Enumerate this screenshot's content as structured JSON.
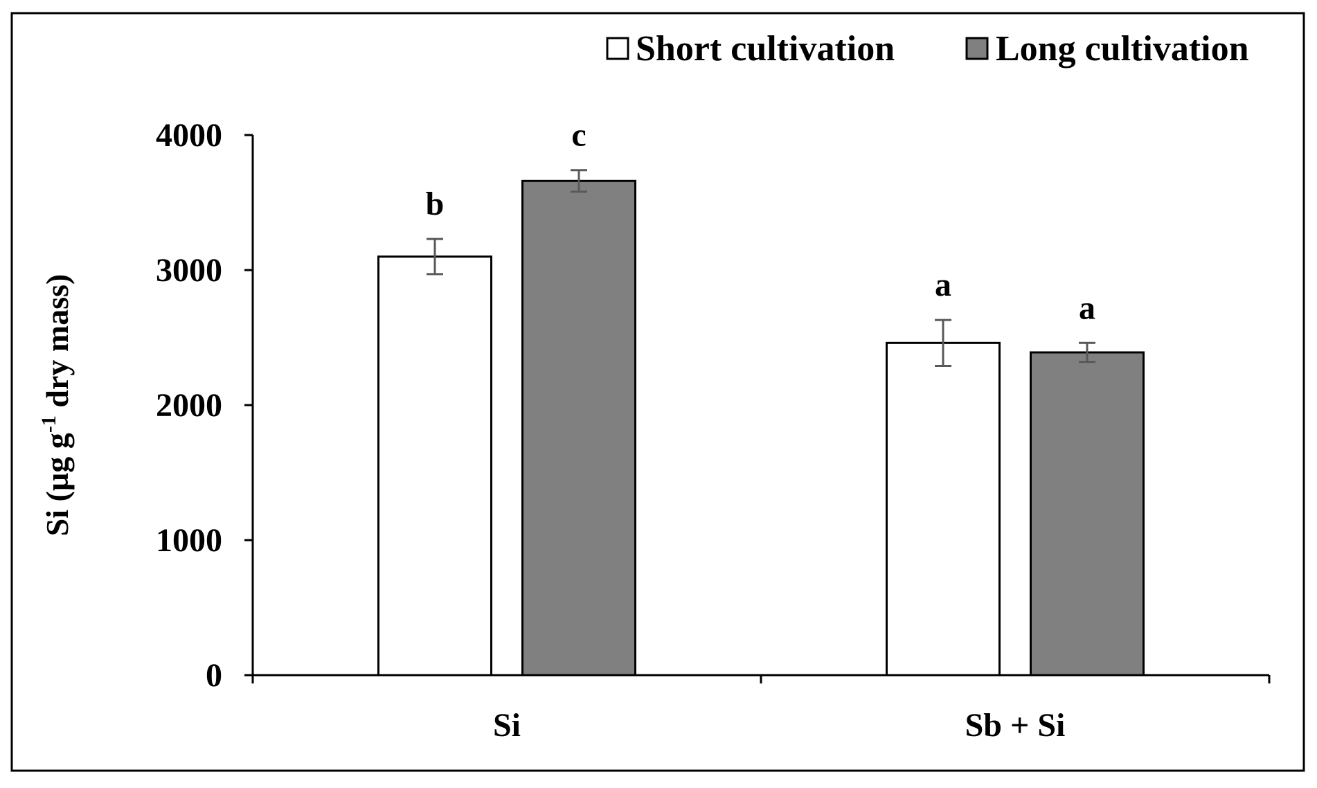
{
  "chart_data": {
    "type": "bar",
    "categories": [
      "Si",
      "Sb + Si"
    ],
    "series": [
      {
        "name": "Short cultivation",
        "color": "#ffffff",
        "values": [
          3100,
          2460
        ],
        "errors": [
          130,
          170
        ],
        "letters": [
          "b",
          "a"
        ]
      },
      {
        "name": "Long cultivation",
        "color": "#808080",
        "values": [
          3660,
          2390
        ],
        "errors": [
          80,
          70
        ],
        "letters": [
          "c",
          "a"
        ]
      }
    ],
    "ylabel": {
      "main": "Si (µg g",
      "sup": "-1",
      "rest": " dry mass)"
    },
    "ylim": [
      0,
      4000
    ],
    "yticks": [
      0,
      1000,
      2000,
      3000,
      4000
    ],
    "legend_position": "top-right",
    "grid": false,
    "colors": {
      "frame": "#000000",
      "error_bar": "#595959"
    }
  }
}
